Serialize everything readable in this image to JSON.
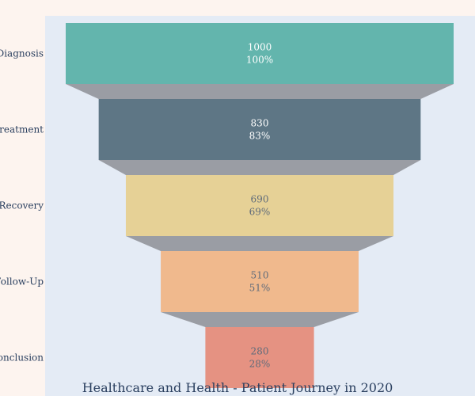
{
  "chart_data": {
    "type": "funnel",
    "title": "Healthcare and Health - Patient Journey in 2020",
    "categories": [
      "Diagnosis",
      "Treatment",
      "Recovery",
      "Follow-Up",
      "Conclusion"
    ],
    "values": [
      1000,
      830,
      690,
      510,
      280
    ],
    "percent_labels": [
      "100%",
      "83%",
      "69%",
      "51%",
      "28%"
    ],
    "colors": [
      "#63b5ad",
      "#5e7685",
      "#e6d196",
      "#f0b98d",
      "#e59282"
    ],
    "text_colors": [
      "#ffffff",
      "#ffffff",
      "#5f6b7a",
      "#5f6b7a",
      "#5f6b7a"
    ],
    "connector_color": "#9a9da4",
    "plot_background": "#e4ebf5",
    "paper_background": "#fdf4ef"
  }
}
